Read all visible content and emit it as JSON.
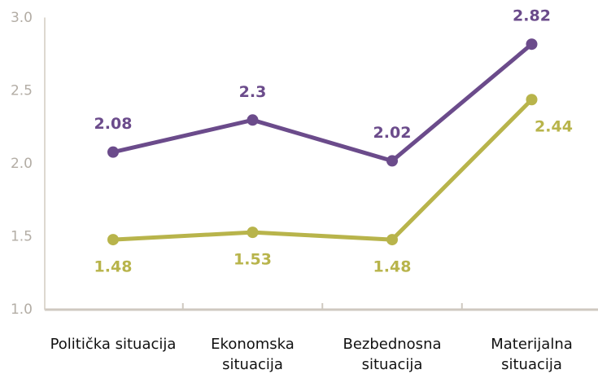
{
  "chart_data": {
    "type": "line",
    "categories": [
      "Politička situacija",
      "Ekonomska situacija",
      "Bezbednosna situacija",
      "Materijalna situacija"
    ],
    "series": [
      {
        "color": "#6b4b8b",
        "values": [
          2.08,
          2.3,
          2.02,
          2.82
        ]
      },
      {
        "color": "#b8b44b",
        "values": [
          1.48,
          1.53,
          1.48,
          2.44
        ]
      }
    ],
    "ylim": [
      1.0,
      3.0
    ],
    "yticks": [
      {
        "value": 1.0,
        "label": "1.0"
      },
      1.5,
      {
        "value": 2.0,
        "label": "2.0"
      },
      2.5,
      {
        "value": 3.0,
        "label": "3.0"
      }
    ],
    "grid": false
  }
}
